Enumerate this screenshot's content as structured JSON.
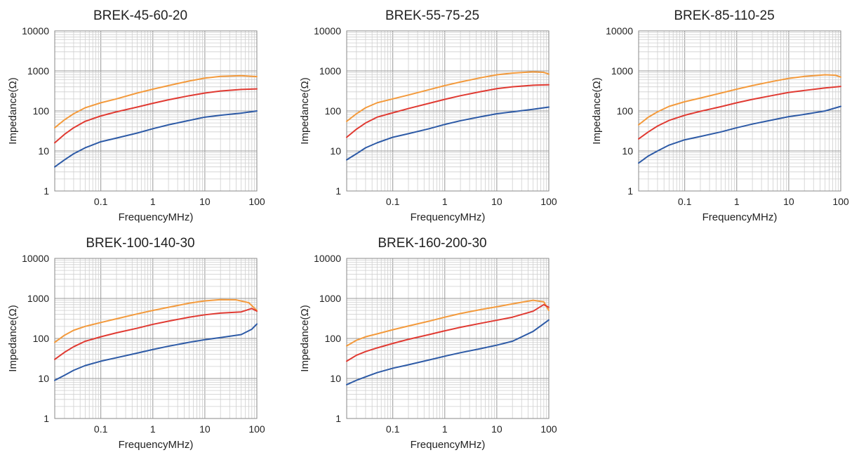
{
  "chart_data": [
    {
      "type": "line",
      "title": "BREK-45-60-20",
      "xlabel": "FrequencyMHz)",
      "ylabel": "Impedance(Ω)",
      "xscale": "log",
      "yscale": "log",
      "xlim": [
        0.013,
        100
      ],
      "ylim": [
        1,
        10000
      ],
      "xticks": [
        "0.1",
        "1",
        "10",
        "100"
      ],
      "yticks": [
        "1",
        "10",
        "100",
        "1000",
        "10000"
      ],
      "grid": true,
      "series": [
        {
          "color": "#f39a3c",
          "x": [
            0.013,
            0.02,
            0.03,
            0.05,
            0.1,
            0.2,
            0.5,
            1,
            2,
            5,
            10,
            20,
            50,
            100
          ],
          "y": [
            38,
            60,
            85,
            120,
            160,
            200,
            280,
            350,
            430,
            560,
            660,
            730,
            760,
            720
          ]
        },
        {
          "color": "#e03a32",
          "x": [
            0.013,
            0.02,
            0.03,
            0.05,
            0.1,
            0.2,
            0.5,
            1,
            2,
            5,
            10,
            20,
            50,
            100
          ],
          "y": [
            16,
            26,
            38,
            55,
            75,
            95,
            125,
            155,
            190,
            240,
            280,
            315,
            345,
            355
          ]
        },
        {
          "color": "#2d5aa6",
          "x": [
            0.013,
            0.02,
            0.03,
            0.05,
            0.1,
            0.2,
            0.5,
            1,
            2,
            5,
            10,
            20,
            50,
            100
          ],
          "y": [
            4,
            6,
            8.5,
            12,
            17,
            21,
            28,
            36,
            45,
            58,
            70,
            78,
            88,
            100
          ]
        }
      ]
    },
    {
      "type": "line",
      "title": "BREK-55-75-25",
      "xlabel": "FrequencyMHz)",
      "ylabel": "Impedance(Ω)",
      "xscale": "log",
      "yscale": "log",
      "xlim": [
        0.013,
        100
      ],
      "ylim": [
        1,
        10000
      ],
      "xticks": [
        "0.1",
        "1",
        "10",
        "100"
      ],
      "yticks": [
        "1",
        "10",
        "100",
        "1000",
        "10000"
      ],
      "grid": true,
      "series": [
        {
          "color": "#f39a3c",
          "x": [
            0.013,
            0.02,
            0.03,
            0.05,
            0.1,
            0.2,
            0.5,
            1,
            2,
            5,
            10,
            20,
            50,
            80,
            100
          ],
          "y": [
            55,
            85,
            120,
            160,
            200,
            250,
            340,
            430,
            530,
            680,
            800,
            880,
            950,
            920,
            830
          ]
        },
        {
          "color": "#e03a32",
          "x": [
            0.013,
            0.02,
            0.03,
            0.05,
            0.1,
            0.2,
            0.5,
            1,
            2,
            5,
            10,
            20,
            50,
            100
          ],
          "y": [
            22,
            35,
            50,
            70,
            90,
            115,
            155,
            195,
            240,
            305,
            360,
            400,
            440,
            450
          ]
        },
        {
          "color": "#2d5aa6",
          "x": [
            0.013,
            0.02,
            0.03,
            0.05,
            0.1,
            0.2,
            0.5,
            1,
            2,
            5,
            10,
            20,
            50,
            100
          ],
          "y": [
            6,
            8.5,
            12,
            16,
            22,
            27,
            36,
            46,
            57,
            72,
            85,
            95,
            110,
            125
          ]
        }
      ]
    },
    {
      "type": "line",
      "title": "BREK-85-110-25",
      "xlabel": "FrequencyMHz)",
      "ylabel": "Impedance(Ω)",
      "xscale": "log",
      "yscale": "log",
      "xlim": [
        0.013,
        100
      ],
      "ylim": [
        1,
        10000
      ],
      "xticks": [
        "0.1",
        "1",
        "10",
        "100"
      ],
      "yticks": [
        "1",
        "10",
        "100",
        "1000",
        "10000"
      ],
      "grid": true,
      "series": [
        {
          "color": "#f39a3c",
          "x": [
            0.013,
            0.02,
            0.03,
            0.05,
            0.1,
            0.2,
            0.5,
            1,
            2,
            5,
            10,
            20,
            50,
            80,
            100
          ],
          "y": [
            45,
            70,
            95,
            130,
            170,
            210,
            280,
            350,
            430,
            550,
            650,
            730,
            800,
            780,
            700
          ]
        },
        {
          "color": "#e03a32",
          "x": [
            0.013,
            0.02,
            0.03,
            0.05,
            0.1,
            0.2,
            0.5,
            1,
            2,
            5,
            10,
            20,
            50,
            100
          ],
          "y": [
            20,
            30,
            42,
            58,
            78,
            98,
            128,
            160,
            195,
            245,
            290,
            325,
            375,
            410
          ]
        },
        {
          "color": "#2d5aa6",
          "x": [
            0.013,
            0.02,
            0.03,
            0.05,
            0.1,
            0.2,
            0.5,
            1,
            2,
            5,
            10,
            20,
            50,
            100
          ],
          "y": [
            5,
            7.5,
            10,
            14,
            19,
            23,
            30,
            38,
            47,
            60,
            72,
            82,
            100,
            130
          ]
        }
      ]
    },
    {
      "type": "line",
      "title": "BREK-100-140-30",
      "xlabel": "FrequencyMHz)",
      "ylabel": "Impedance(Ω)",
      "xscale": "log",
      "yscale": "log",
      "xlim": [
        0.013,
        100
      ],
      "ylim": [
        1,
        10000
      ],
      "xticks": [
        "0.1",
        "1",
        "10",
        "100"
      ],
      "yticks": [
        "1",
        "10",
        "100",
        "1000",
        "10000"
      ],
      "grid": true,
      "series": [
        {
          "color": "#f39a3c",
          "x": [
            0.013,
            0.02,
            0.03,
            0.05,
            0.1,
            0.2,
            0.5,
            1,
            2,
            5,
            10,
            20,
            40,
            70,
            100
          ],
          "y": [
            80,
            120,
            160,
            200,
            250,
            310,
            410,
            500,
            600,
            760,
            870,
            930,
            920,
            780,
            500
          ]
        },
        {
          "color": "#e03a32",
          "x": [
            0.013,
            0.02,
            0.03,
            0.05,
            0.1,
            0.2,
            0.5,
            1,
            2,
            5,
            10,
            20,
            50,
            80,
            100
          ],
          "y": [
            30,
            45,
            62,
            85,
            110,
            138,
            180,
            225,
            270,
            340,
            390,
            430,
            460,
            560,
            480
          ]
        },
        {
          "color": "#2d5aa6",
          "x": [
            0.013,
            0.02,
            0.03,
            0.05,
            0.1,
            0.2,
            0.5,
            1,
            2,
            5,
            10,
            20,
            50,
            80,
            100
          ],
          "y": [
            9,
            12,
            16,
            21,
            27,
            33,
            43,
            53,
            64,
            80,
            93,
            105,
            125,
            170,
            230
          ]
        }
      ]
    },
    {
      "type": "line",
      "title": "BREK-160-200-30",
      "xlabel": "FrequencyMHz)",
      "ylabel": "Impedance(Ω)",
      "xscale": "log",
      "yscale": "log",
      "xlim": [
        0.013,
        100
      ],
      "ylim": [
        1,
        10000
      ],
      "xticks": [
        "0.1",
        "1",
        "10",
        "100"
      ],
      "yticks": [
        "1",
        "10",
        "100",
        "1000",
        "10000"
      ],
      "grid": true,
      "series": [
        {
          "color": "#f39a3c",
          "x": [
            0.013,
            0.02,
            0.03,
            0.05,
            0.1,
            0.2,
            0.5,
            1,
            2,
            5,
            10,
            20,
            50,
            80,
            100
          ],
          "y": [
            65,
            90,
            110,
            130,
            165,
            205,
            270,
            340,
            420,
            530,
            620,
            730,
            900,
            820,
            500
          ]
        },
        {
          "color": "#e03a32",
          "x": [
            0.013,
            0.02,
            0.03,
            0.05,
            0.1,
            0.2,
            0.5,
            1,
            2,
            5,
            10,
            20,
            50,
            80,
            100
          ],
          "y": [
            27,
            38,
            47,
            58,
            75,
            95,
            125,
            155,
            190,
            240,
            285,
            340,
            480,
            700,
            600
          ]
        },
        {
          "color": "#2d5aa6",
          "x": [
            0.013,
            0.02,
            0.03,
            0.05,
            0.1,
            0.2,
            0.5,
            1,
            2,
            5,
            10,
            20,
            50,
            100
          ],
          "y": [
            7,
            9,
            11,
            14,
            18,
            22,
            29,
            36,
            44,
            56,
            68,
            85,
            150,
            290
          ]
        }
      ]
    }
  ]
}
